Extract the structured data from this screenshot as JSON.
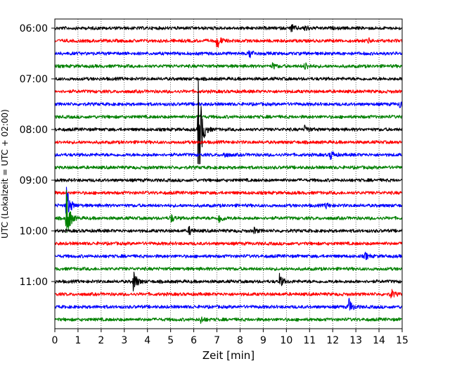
{
  "chart_data": {
    "type": "line",
    "subtype": "helicorder-seismogram",
    "title": "",
    "xlabel": "Zeit  [min]",
    "ylabel": "UTC (Lokalzeit = UTC + 02:00)",
    "xlim": [
      0,
      15
    ],
    "x_ticks": [
      0,
      1,
      2,
      3,
      4,
      5,
      6,
      7,
      8,
      9,
      10,
      11,
      12,
      13,
      14,
      15
    ],
    "y_tick_labels": [
      "06:00",
      "07:00",
      "08:00",
      "09:00",
      "10:00",
      "11:00"
    ],
    "trace_interval_minutes": 15,
    "start_time": "06:00",
    "end_time": "11:45",
    "trace_colors": [
      "#000000",
      "#ff0000",
      "#0000ff",
      "#008000"
    ],
    "vertical_grid": "dotted",
    "trace_labels": [
      "06:00",
      "06:15",
      "06:30",
      "06:45",
      "07:00",
      "07:15",
      "07:30",
      "07:45",
      "08:00",
      "08:15",
      "08:30",
      "08:45",
      "09:00",
      "09:15",
      "09:30",
      "09:45",
      "10:00",
      "10:15",
      "10:30",
      "10:45",
      "11:00",
      "11:15",
      "11:30",
      "11:45"
    ],
    "events": [
      {
        "trace": "06:00",
        "minute": 10.2,
        "amplitude": 0.3
      },
      {
        "trace": "06:00",
        "minute": 10.8,
        "amplitude": 0.25
      },
      {
        "trace": "06:15",
        "minute": 7.0,
        "amplitude": 0.6
      },
      {
        "trace": "06:15",
        "minute": 13.5,
        "amplitude": 0.2
      },
      {
        "trace": "06:30",
        "minute": 8.4,
        "amplitude": 0.35
      },
      {
        "trace": "06:45",
        "minute": 9.4,
        "amplitude": 0.2
      },
      {
        "trace": "06:45",
        "minute": 10.8,
        "amplitude": 0.3
      },
      {
        "trace": "07:30",
        "minute": 14.9,
        "amplitude": 0.3
      },
      {
        "trace": "08:00",
        "minute": 6.2,
        "amplitude": 4.5
      },
      {
        "trace": "08:00",
        "minute": 10.8,
        "amplitude": 0.3
      },
      {
        "trace": "08:30",
        "minute": 7.3,
        "amplitude": 0.2
      },
      {
        "trace": "08:30",
        "minute": 11.9,
        "amplitude": 0.35
      },
      {
        "trace": "09:30",
        "minute": 0.5,
        "amplitude": 1.5
      },
      {
        "trace": "09:30",
        "minute": 11.7,
        "amplitude": 0.2
      },
      {
        "trace": "09:45",
        "minute": 0.5,
        "amplitude": 2.0
      },
      {
        "trace": "09:45",
        "minute": 5.0,
        "amplitude": 0.3
      },
      {
        "trace": "09:45",
        "minute": 7.1,
        "amplitude": 0.4
      },
      {
        "trace": "10:00",
        "minute": 5.8,
        "amplitude": 0.3
      },
      {
        "trace": "10:00",
        "minute": 8.6,
        "amplitude": 0.2
      },
      {
        "trace": "10:30",
        "minute": 13.4,
        "amplitude": 0.25
      },
      {
        "trace": "11:00",
        "minute": 3.4,
        "amplitude": 0.9
      },
      {
        "trace": "11:00",
        "minute": 9.7,
        "amplitude": 0.5
      },
      {
        "trace": "11:15",
        "minute": 14.5,
        "amplitude": 0.4
      },
      {
        "trace": "11:30",
        "minute": 12.7,
        "amplitude": 0.6
      },
      {
        "trace": "11:45",
        "minute": 6.3,
        "amplitude": 0.25
      }
    ]
  }
}
